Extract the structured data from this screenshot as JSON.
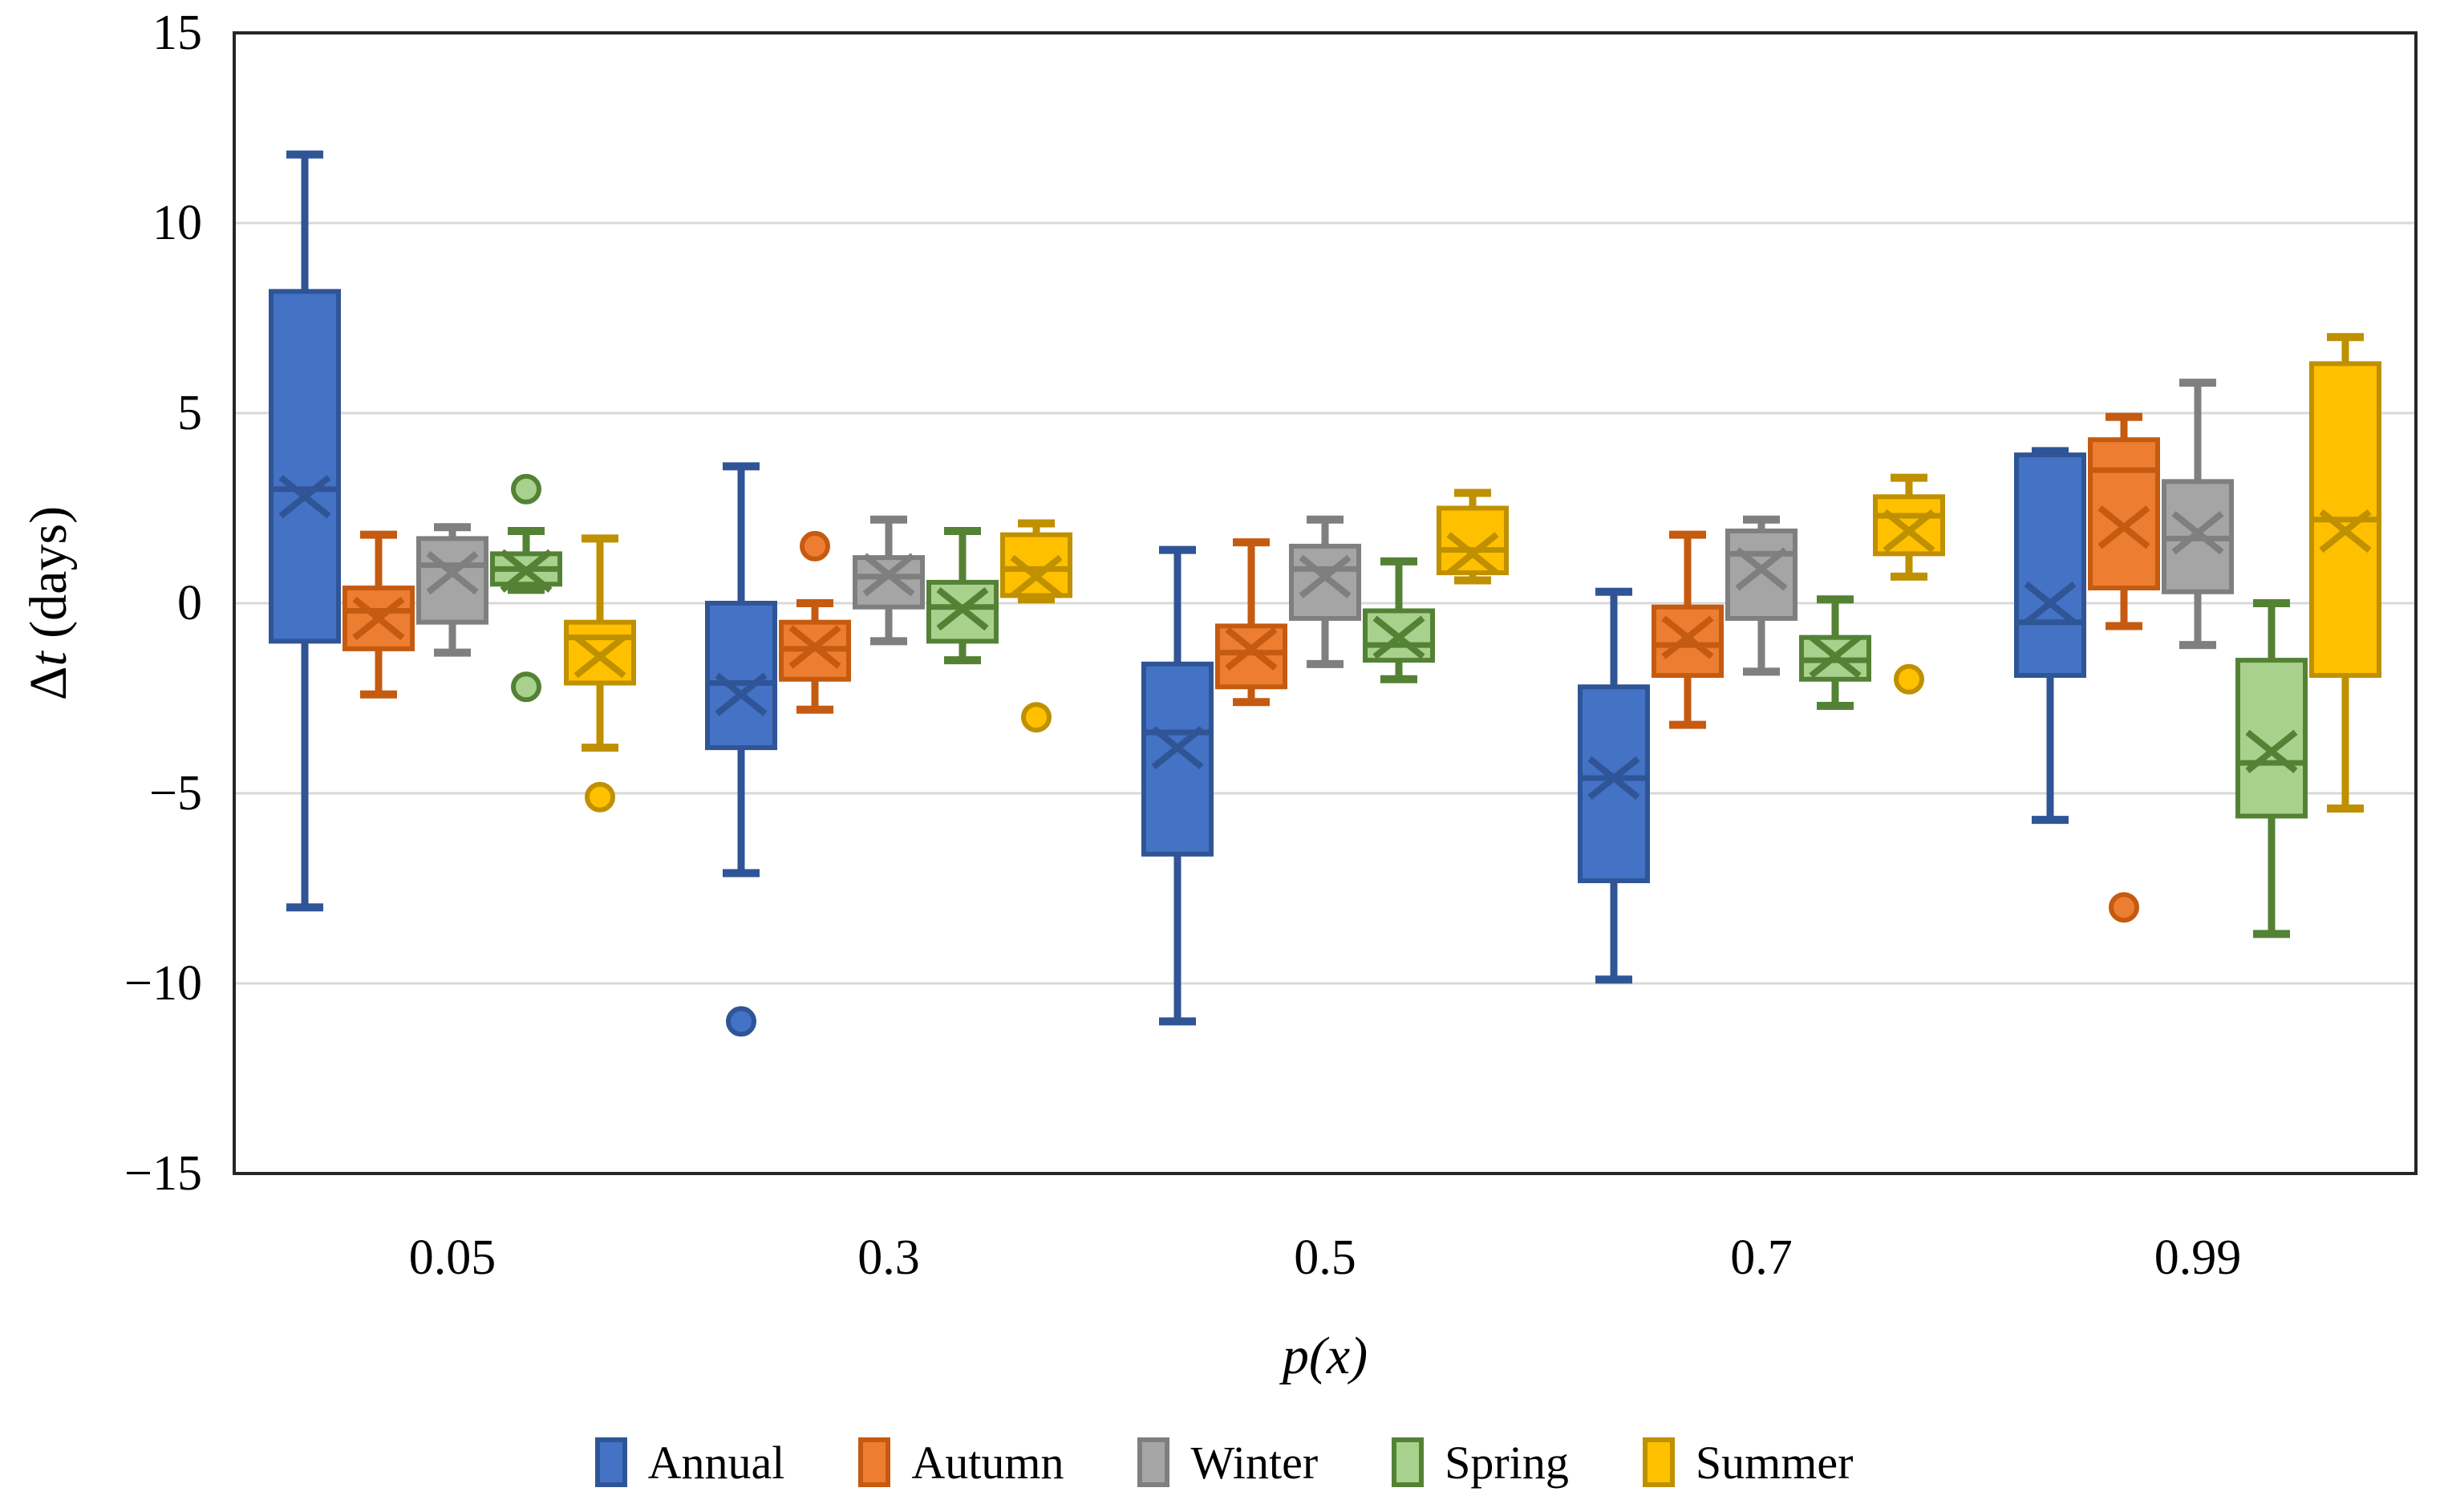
{
  "chart_data": {
    "type": "boxplot",
    "title": "",
    "xlabel": "p(x)",
    "ylabel": "Δt (days)",
    "ylabel_parts": {
      "upright": "Δ",
      "italic": "t",
      "rest": " (days)"
    },
    "ylim": [
      -15,
      15
    ],
    "yticks": [
      {
        "label": "15",
        "value": 15
      },
      {
        "label": "10",
        "value": 10
      },
      {
        "label": "5",
        "value": 5
      },
      {
        "label": "0",
        "value": 0
      },
      {
        "label": "−5",
        "value": -5
      },
      {
        "label": "−10",
        "value": -10
      },
      {
        "label": "−15",
        "value": -15
      }
    ],
    "gridline_values": [
      10,
      5,
      0,
      -5,
      -10
    ],
    "grid": true,
    "legend_position": "bottom",
    "categories": [
      "0.05",
      "0.3",
      "0.5",
      "0.7",
      "0.99"
    ],
    "colors": {
      "gridline": "#d9d9d9",
      "frame": "#262626"
    },
    "series": [
      {
        "name": "Annual",
        "fill": "#4472C4",
        "stroke": "#2F5597",
        "boxes": [
          {
            "low": -8.0,
            "q1": -1.0,
            "median": 3.0,
            "q3": 8.2,
            "high": 11.8,
            "mean": 2.8,
            "outliers": []
          },
          {
            "low": -7.1,
            "q1": -3.8,
            "median": -2.1,
            "q3": 0.0,
            "high": 3.6,
            "mean": -2.4,
            "outliers": [
              -11.0
            ]
          },
          {
            "low": -11.0,
            "q1": -6.6,
            "median": -3.4,
            "q3": -1.6,
            "high": 1.4,
            "mean": -3.8,
            "outliers": []
          },
          {
            "low": -9.9,
            "q1": -7.3,
            "median": -4.6,
            "q3": -2.2,
            "high": 0.3,
            "mean": -4.6,
            "outliers": []
          },
          {
            "low": -5.7,
            "q1": -1.9,
            "median": -0.5,
            "q3": 3.9,
            "high": 4.0,
            "mean": 0.0,
            "outliers": []
          }
        ]
      },
      {
        "name": "Autumn",
        "fill": "#ED7D31",
        "stroke": "#C55A11",
        "boxes": [
          {
            "low": -2.4,
            "q1": -1.2,
            "median": -0.2,
            "q3": 0.4,
            "high": 1.8,
            "mean": -0.4,
            "outliers": []
          },
          {
            "low": -2.8,
            "q1": -2.0,
            "median": -1.2,
            "q3": -0.5,
            "high": 0.0,
            "mean": -1.15,
            "outliers": [
              1.5
            ]
          },
          {
            "low": -2.6,
            "q1": -2.2,
            "median": -1.3,
            "q3": -0.6,
            "high": 1.6,
            "mean": -1.2,
            "outliers": []
          },
          {
            "low": -3.2,
            "q1": -1.9,
            "median": -1.1,
            "q3": -0.1,
            "high": 1.8,
            "mean": -0.9,
            "outliers": []
          },
          {
            "low": -0.6,
            "q1": 0.4,
            "median": 3.5,
            "q3": 4.3,
            "high": 4.9,
            "mean": 2.0,
            "outliers": [
              -8.0
            ]
          }
        ]
      },
      {
        "name": "Winter",
        "fill": "#A5A5A5",
        "stroke": "#7F7F7F",
        "boxes": [
          {
            "low": -1.3,
            "q1": -0.5,
            "median": 1.0,
            "q3": 1.7,
            "high": 2.0,
            "mean": 0.8,
            "outliers": []
          },
          {
            "low": -1.0,
            "q1": -0.1,
            "median": 0.7,
            "q3": 1.2,
            "high": 2.2,
            "mean": 0.75,
            "outliers": []
          },
          {
            "low": -1.6,
            "q1": -0.4,
            "median": 0.9,
            "q3": 1.5,
            "high": 2.2,
            "mean": 0.7,
            "outliers": []
          },
          {
            "low": -1.8,
            "q1": -0.4,
            "median": 1.3,
            "q3": 1.9,
            "high": 2.2,
            "mean": 0.9,
            "outliers": []
          },
          {
            "low": -1.1,
            "q1": 0.3,
            "median": 1.7,
            "q3": 3.2,
            "high": 5.8,
            "mean": 1.85,
            "outliers": []
          }
        ]
      },
      {
        "name": "Spring",
        "fill": "#A9D18E",
        "stroke": "#548235",
        "boxes": [
          {
            "low": 0.35,
            "q1": 0.5,
            "median": 0.9,
            "q3": 1.3,
            "high": 1.9,
            "mean": 0.85,
            "outliers": [
              3.0,
              -2.2
            ]
          },
          {
            "low": -1.5,
            "q1": -1.0,
            "median": -0.1,
            "q3": 0.55,
            "high": 1.9,
            "mean": -0.15,
            "outliers": []
          },
          {
            "low": -2.0,
            "q1": -1.5,
            "median": -1.1,
            "q3": -0.2,
            "high": 1.1,
            "mean": -0.9,
            "outliers": []
          },
          {
            "low": -2.7,
            "q1": -2.0,
            "median": -1.5,
            "q3": -0.9,
            "high": 0.1,
            "mean": -1.4,
            "outliers": []
          },
          {
            "low": -8.7,
            "q1": -5.6,
            "median": -4.2,
            "q3": -1.5,
            "high": 0.0,
            "mean": -3.9,
            "outliers": []
          }
        ]
      },
      {
        "name": "Summer",
        "fill": "#FFC000",
        "stroke": "#BF9000",
        "boxes": [
          {
            "low": -3.8,
            "q1": -2.1,
            "median": -0.9,
            "q3": -0.5,
            "high": 1.7,
            "mean": -1.4,
            "outliers": [
              -5.1
            ]
          },
          {
            "low": 0.1,
            "q1": 0.2,
            "median": 0.9,
            "q3": 1.8,
            "high": 2.1,
            "mean": 0.7,
            "outliers": [
              -3.0
            ]
          },
          {
            "low": 0.6,
            "q1": 0.8,
            "median": 1.4,
            "q3": 2.5,
            "high": 2.9,
            "mean": 1.3,
            "outliers": []
          },
          {
            "low": 0.7,
            "q1": 1.3,
            "median": 2.3,
            "q3": 2.8,
            "high": 3.3,
            "mean": 1.9,
            "outliers": [
              -2.0
            ]
          },
          {
            "low": -5.4,
            "q1": -1.9,
            "median": 2.2,
            "q3": 6.3,
            "high": 7.0,
            "mean": 1.9,
            "outliers": []
          }
        ]
      }
    ]
  }
}
